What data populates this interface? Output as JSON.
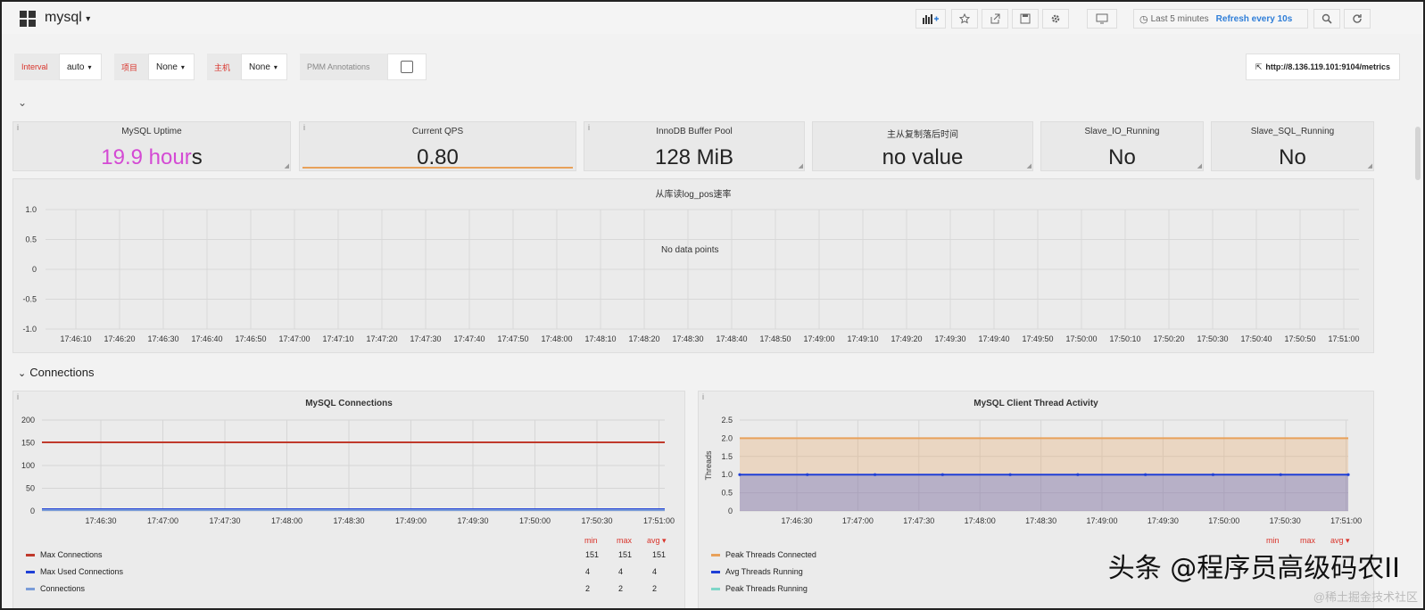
{
  "dashboard": {
    "title": "mysql",
    "caret": "▾"
  },
  "toolbar": {
    "time_range": "Last 5 minutes",
    "refresh": "Refresh every 10s",
    "clock_glyph": "◷"
  },
  "variables": {
    "interval_label": "Interval",
    "interval_value": "auto",
    "project_label": "项目",
    "project_value": "None",
    "host_label": "主机",
    "host_value": "None",
    "pmm_label": "PMM Annotations",
    "caret": "▾"
  },
  "metrics_link": "http://8.136.119.101:9104/metrics",
  "metrics_link_glyph": "⇱",
  "chevron_glyph": "⌄",
  "stats": [
    {
      "title": "MySQL Uptime",
      "value_a": "19.9 hour",
      "value_b": "s"
    },
    {
      "title": "Current QPS",
      "value": "0.80"
    },
    {
      "title": "InnoDB Buffer Pool",
      "value": "128 MiB"
    },
    {
      "title": "主从复制落后时间",
      "value": "no value"
    },
    {
      "title": "Slave_IO_Running",
      "value": "No"
    },
    {
      "title": "Slave_SQL_Running",
      "value": "No"
    }
  ],
  "logpos_panel": {
    "title": "从库读log_pos速率",
    "nodata": "No data points",
    "y_ticks": [
      "1.0",
      "0.5",
      "0",
      "-0.5",
      "-1.0"
    ],
    "x_ticks": [
      "17:46:10",
      "17:46:20",
      "17:46:30",
      "17:46:40",
      "17:46:50",
      "17:47:00",
      "17:47:10",
      "17:47:20",
      "17:47:30",
      "17:47:40",
      "17:47:50",
      "17:48:00",
      "17:48:10",
      "17:48:20",
      "17:48:30",
      "17:48:40",
      "17:48:50",
      "17:49:00",
      "17:49:10",
      "17:49:20",
      "17:49:30",
      "17:49:40",
      "17:49:50",
      "17:50:00",
      "17:50:10",
      "17:50:20",
      "17:50:30",
      "17:50:40",
      "17:50:50",
      "17:51:00"
    ]
  },
  "row": {
    "title": "Connections",
    "caret": "⌄"
  },
  "connections_panel": {
    "title": "MySQL Connections",
    "y_ticks": [
      "200",
      "150",
      "100",
      "50",
      "0"
    ],
    "x_ticks": [
      "17:46:30",
      "17:47:00",
      "17:47:30",
      "17:48:00",
      "17:48:30",
      "17:49:00",
      "17:49:30",
      "17:50:00",
      "17:50:30",
      "17:51:00"
    ],
    "legend_headers": {
      "min": "min",
      "max": "max",
      "avg": "avg ▾"
    },
    "legend": [
      {
        "name": "Max Connections",
        "min": "151",
        "max": "151",
        "avg": "151",
        "color": "#c0392b"
      },
      {
        "name": "Max Used Connections",
        "min": "4",
        "max": "4",
        "avg": "4",
        "color": "#1f3fd6"
      },
      {
        "name": "Connections",
        "min": "2",
        "max": "2",
        "avg": "2",
        "color": "#7a9cd8"
      }
    ]
  },
  "threads_panel": {
    "title": "MySQL Client Thread Activity",
    "ylabel": "Threads",
    "y_ticks": [
      "2.5",
      "2.0",
      "1.5",
      "1.0",
      "0.5",
      "0"
    ],
    "x_ticks": [
      "17:46:30",
      "17:47:00",
      "17:47:30",
      "17:48:00",
      "17:48:30",
      "17:49:00",
      "17:49:30",
      "17:50:00",
      "17:50:30",
      "17:51:00"
    ],
    "legend_headers": {
      "min": "min",
      "max": "max",
      "avg": "avg ▾"
    },
    "legend": [
      {
        "name": "Peak Threads Connected",
        "color": "#e8a15a"
      },
      {
        "name": "Avg Threads Running",
        "color": "#1f3fd6"
      },
      {
        "name": "Peak Threads Running",
        "color": "#7fd6c8"
      }
    ]
  },
  "watermark": "头条 @程序员高级码农II",
  "watermark_sub": "@稀土掘金技术社区",
  "chart_data": [
    {
      "type": "line",
      "title": "从库读log_pos速率",
      "series": [],
      "ylim": [
        -1.0,
        1.0
      ]
    },
    {
      "type": "line",
      "title": "MySQL Connections",
      "x": [
        "17:46:30",
        "17:47:00",
        "17:47:30",
        "17:48:00",
        "17:48:30",
        "17:49:00",
        "17:49:30",
        "17:50:00",
        "17:50:30",
        "17:51:00"
      ],
      "series": [
        {
          "name": "Max Connections",
          "values": [
            151,
            151,
            151,
            151,
            151,
            151,
            151,
            151,
            151,
            151
          ],
          "color": "#c0392b"
        },
        {
          "name": "Max Used Connections",
          "values": [
            4,
            4,
            4,
            4,
            4,
            4,
            4,
            4,
            4,
            4
          ],
          "color": "#1f3fd6"
        },
        {
          "name": "Connections",
          "values": [
            2,
            2,
            2,
            2,
            2,
            2,
            2,
            2,
            2,
            2
          ],
          "color": "#7a9cd8"
        }
      ],
      "ylim": [
        0,
        200
      ]
    },
    {
      "type": "area",
      "title": "MySQL Client Thread Activity",
      "ylabel": "Threads",
      "x": [
        "17:46:30",
        "17:47:00",
        "17:47:30",
        "17:48:00",
        "17:48:30",
        "17:49:00",
        "17:49:30",
        "17:50:00",
        "17:50:30",
        "17:51:00"
      ],
      "series": [
        {
          "name": "Peak Threads Connected",
          "values": [
            2,
            2,
            2,
            2,
            2,
            2,
            2,
            2,
            2,
            2
          ],
          "color": "#e8a15a"
        },
        {
          "name": "Avg Threads Running",
          "values": [
            1,
            1,
            1,
            1,
            1,
            1,
            1,
            1,
            1,
            1
          ],
          "color": "#1f3fd6"
        }
      ],
      "ylim": [
        0,
        2.5
      ]
    }
  ]
}
